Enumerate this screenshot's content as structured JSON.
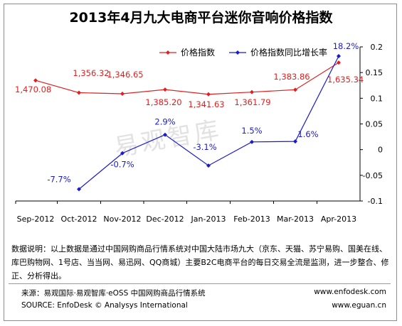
{
  "title": "2013年4月九大电商平台迷你音响价格指数",
  "colors": {
    "price": "#e02020",
    "yoy": "#1a1acd",
    "grid": "#000000"
  },
  "watermark": "易观智库",
  "chart_data": {
    "type": "line",
    "categories": [
      "Sep-2012",
      "Oct-2012",
      "Nov-2012",
      "Dec-2012",
      "Jan-2013",
      "Feb-2013",
      "Mar-2013",
      "Apr-2013"
    ],
    "series": [
      {
        "name": "价格指数",
        "axis": "left",
        "color": "#e02020",
        "values": [
          1470.08,
          1356.32,
          1346.65,
          1385.2,
          1341.63,
          1361.79,
          1383.86,
          1635.34
        ],
        "labels": [
          "1,470.08",
          "1,356.32",
          "1,346.65",
          "1,385.20",
          "1,341.63",
          "1,361.79",
          "1,383.86",
          "1,635.34"
        ]
      },
      {
        "name": "价格指数同比增长率",
        "axis": "right",
        "color": "#1a1acd",
        "values": [
          null,
          -0.077,
          -0.007,
          0.029,
          -0.031,
          0.015,
          0.016,
          0.182
        ],
        "labels": [
          "",
          "-7.7%",
          "-0.7%",
          "2.9%",
          "-3.1%",
          "1.5%",
          "1.6%",
          "18.2%"
        ]
      }
    ],
    "y2lim": [
      -0.1,
      0.2
    ],
    "y2ticks": [
      "0.2",
      "0.15",
      "0.1",
      "0.05",
      "0",
      "-0.05",
      "-0.1"
    ],
    "legend_position": "top"
  },
  "note": "数据说明：以上数据是通过中国网购商品行情系统对中国大陆市场九大（京东、天猫、苏宁易购、国美在线、库巴购物网、1号店、当当网、易迅网、QQ商城）主要B2C电商平台的每日交易全流是监测，进一步整合、修正、分析得出。",
  "source": {
    "cn": "来源：易观国际·易观智库·eOSS 中国网购商品行情系统",
    "en": "SOURCE: EnfoDesk © Analysys International",
    "url1": "www.enfodesk.com",
    "url2": "www.eguan.cn"
  }
}
